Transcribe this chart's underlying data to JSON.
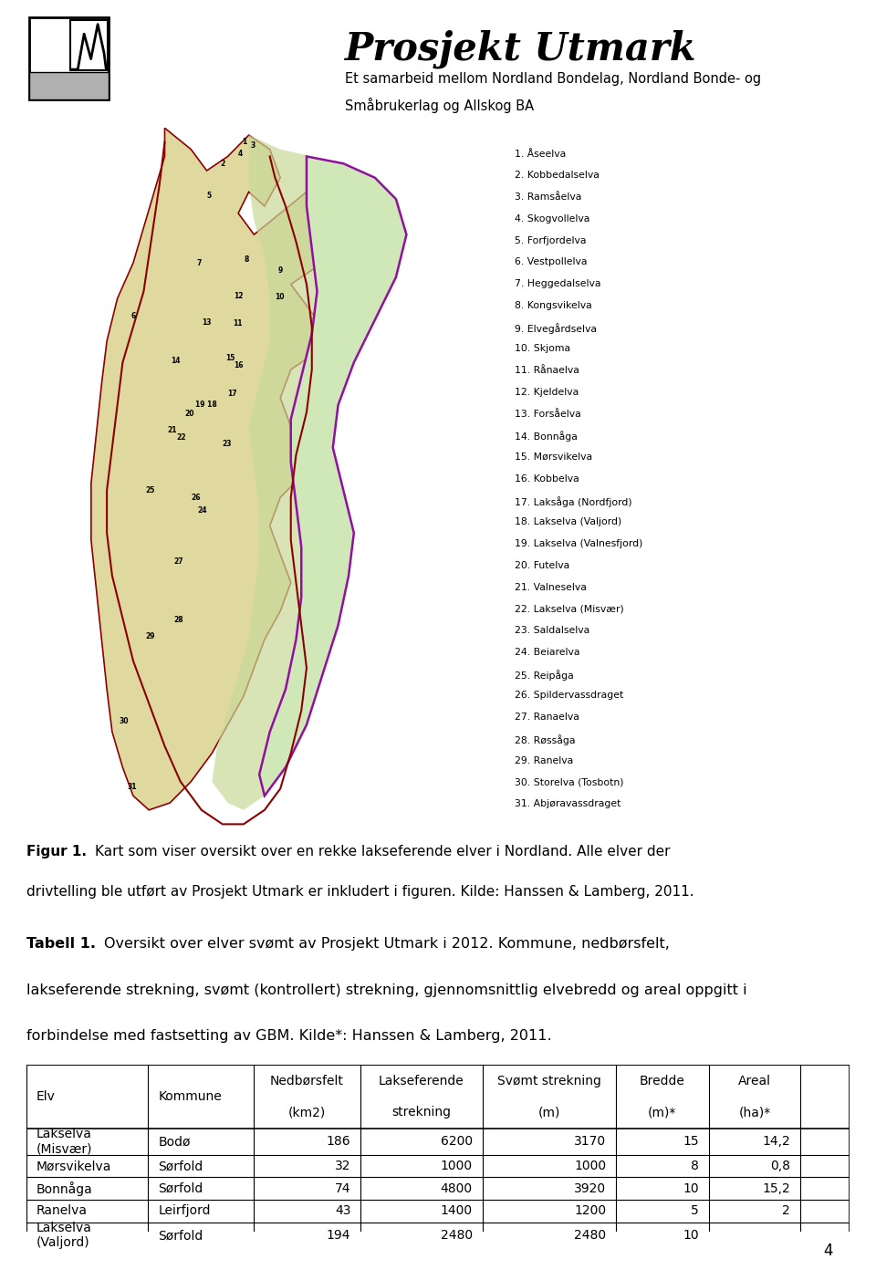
{
  "page_bg": "#ffffff",
  "header_title": "Prosjekt Utmark",
  "header_subtitle_line1": "Et samarbeid mellom Nordland Bondelag, Nordland Bonde- og",
  "header_subtitle_line2": "Småbrukerlag og Allskog BA",
  "figur_caption_bold": "Figur 1.",
  "figur_caption_normal": " Kart som viser oversikt over en rekke lakseførende elver i Nordland. Alle elver der drivtelling ble utført av Prosjekt Utmark er inkludert i figuren. Kilde: Hanssen & Lamberg, 2011.",
  "tabell_caption_bold": "Tabell 1.",
  "tabell_caption_normal": " Oversikt over elver svømt av Prosjekt Utmark i 2012. Kommune, nedbørsfelt, lakseferende strekning, svømt (kontrollert) strekning, gjennomsnittlig elvebredd og areal oppgitt i forbindelse med fastsetting av GBM. Kilde*: Hanssen & Lamberg, 2011.",
  "header_line1": [
    "",
    "",
    "Nedbørsfelt",
    "Lakseferende",
    "Svømt strekning",
    "Bredde",
    "Areal"
  ],
  "header_line2": [
    "Elv",
    "Kommune",
    "(km2)",
    "strekning",
    "(m)",
    "(m)*",
    "(ha)*"
  ],
  "table_rows": [
    [
      "Lakselva\n(Misvær)",
      "Bodø",
      "186",
      "6200",
      "3170",
      "15",
      "14,2"
    ],
    [
      "Mørsvikelva",
      "Sørfold",
      "32",
      "1000",
      "1000",
      "8",
      "0,8"
    ],
    [
      "Bonnåga",
      "Sørfold",
      "74",
      "4800",
      "3920",
      "10",
      "15,2"
    ],
    [
      "Ranelva",
      "Leirfjord",
      "43",
      "1400",
      "1200",
      "5",
      "2"
    ],
    [
      "Lakselva\n(Valjord)",
      "Sørfold",
      "194",
      "2480",
      "2480",
      "10",
      ""
    ]
  ],
  "col_aligns": [
    "left",
    "left",
    "right",
    "right",
    "right",
    "right",
    "right"
  ],
  "page_number": "4",
  "map_legend": [
    "1. Åseelva",
    "2. Kobbedalselva",
    "3. Ramsåelva",
    "4. Skogvollelva",
    "5. Forfjordelva",
    "6. Vestpollelva",
    "7. Heggedalselva",
    "8. Kongsvikelva",
    "9. Elvegårdselva",
    "10. Skjoma",
    "11. Rånaelva",
    "12. Kjeldelva",
    "13. Forsåelva",
    "14. Bonnåga",
    "15. Mørsvikelva",
    "16. Kobbelva",
    "17. Laksåga (Nordfjord)",
    "18. Lakselva (Valjord)",
    "19. Lakselva (Valnesfjord)",
    "20. Futelva",
    "21. Valneselva",
    "22. Lakselva (Misvær)",
    "23. Saldalselva",
    "24. Beiarelva",
    "25. Reipåga",
    "26. Spildervassdraget",
    "27. Ranaelva",
    "28. Røssåga",
    "29. Ranelva",
    "30. Storelva (Tosbotn)",
    "31. Abjøravassdraget"
  ]
}
